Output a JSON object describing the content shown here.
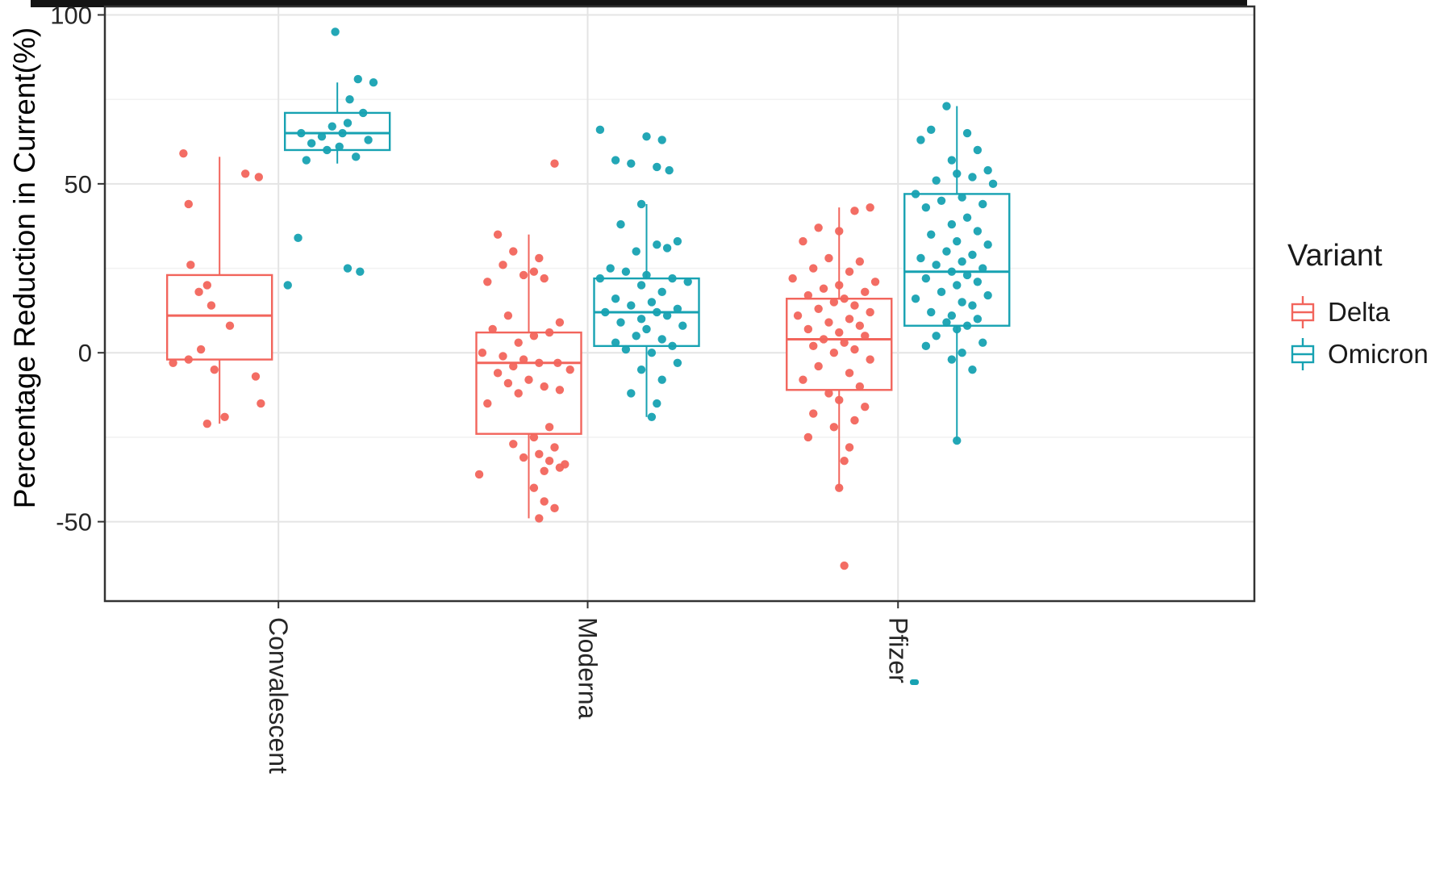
{
  "chart_data": {
    "type": "boxplot",
    "title": "",
    "xlabel": "",
    "ylabel": "Percentage Reduction in Current(%)",
    "ylim": [
      -73.5,
      102.5
    ],
    "yticks": [
      100,
      50,
      0,
      -50
    ],
    "yticks_minor": [
      75,
      25,
      -25
    ],
    "grid": true,
    "categories": [
      "Convalescent",
      "Moderna",
      "Pfizer"
    ],
    "legend": {
      "title": "Variant",
      "position": "right",
      "entries": [
        {
          "label": "Delta",
          "color": "#F2655C"
        },
        {
          "label": "Omicron",
          "color": "#17A2B2"
        }
      ]
    },
    "groups": [
      {
        "category": "Convalescent",
        "variants": [
          {
            "name": "Delta",
            "box": {
              "whisker_low": -21,
              "q1": -2,
              "median": 11,
              "q3": 23,
              "whisker_high": 58
            },
            "points": [
              [
                -0.35,
                59
              ],
              [
                -0.3,
                44
              ],
              [
                0.25,
                53
              ],
              [
                0.38,
                52
              ],
              [
                -0.28,
                26
              ],
              [
                -0.12,
                20
              ],
              [
                -0.2,
                18
              ],
              [
                -0.08,
                14
              ],
              [
                0.1,
                8
              ],
              [
                -0.18,
                1
              ],
              [
                -0.3,
                -2
              ],
              [
                -0.45,
                -3
              ],
              [
                -0.05,
                -5
              ],
              [
                0.35,
                -7
              ],
              [
                0.4,
                -15
              ],
              [
                0.05,
                -19
              ],
              [
                -0.12,
                -21
              ]
            ]
          },
          {
            "name": "Omicron",
            "box": {
              "whisker_low": 56,
              "q1": 60,
              "median": 65,
              "q3": 71,
              "whisker_high": 80
            },
            "points": [
              [
                -0.02,
                95
              ],
              [
                0.2,
                81
              ],
              [
                0.35,
                80
              ],
              [
                0.12,
                75
              ],
              [
                0.25,
                71
              ],
              [
                0.1,
                68
              ],
              [
                -0.05,
                67
              ],
              [
                -0.35,
                65
              ],
              [
                0.05,
                65
              ],
              [
                -0.15,
                64
              ],
              [
                0.3,
                63
              ],
              [
                -0.25,
                62
              ],
              [
                0.02,
                61
              ],
              [
                -0.1,
                60
              ],
              [
                0.18,
                58
              ],
              [
                -0.3,
                57
              ],
              [
                -0.38,
                34
              ],
              [
                0.1,
                25
              ],
              [
                0.22,
                24
              ],
              [
                -0.48,
                20
              ]
            ]
          }
        ]
      },
      {
        "category": "Moderna",
        "variants": [
          {
            "name": "Delta",
            "box": {
              "whisker_low": -49,
              "q1": -24,
              "median": -3,
              "q3": 6,
              "whisker_high": 35
            },
            "points": [
              [
                0.25,
                56
              ],
              [
                -0.3,
                35
              ],
              [
                -0.15,
                30
              ],
              [
                0.1,
                28
              ],
              [
                -0.25,
                26
              ],
              [
                0.05,
                24
              ],
              [
                -0.05,
                23
              ],
              [
                0.15,
                22
              ],
              [
                -0.4,
                21
              ],
              [
                -0.2,
                11
              ],
              [
                0.3,
                9
              ],
              [
                -0.35,
                7
              ],
              [
                0.2,
                6
              ],
              [
                0.05,
                5
              ],
              [
                -0.1,
                3
              ],
              [
                -0.45,
                0
              ],
              [
                -0.25,
                -1
              ],
              [
                -0.05,
                -2
              ],
              [
                0.1,
                -3
              ],
              [
                0.28,
                -3
              ],
              [
                -0.15,
                -4
              ],
              [
                0.4,
                -5
              ],
              [
                -0.3,
                -6
              ],
              [
                0.0,
                -8
              ],
              [
                -0.2,
                -9
              ],
              [
                0.15,
                -10
              ],
              [
                0.3,
                -11
              ],
              [
                -0.1,
                -12
              ],
              [
                -0.4,
                -15
              ],
              [
                0.2,
                -22
              ],
              [
                0.05,
                -25
              ],
              [
                -0.15,
                -27
              ],
              [
                0.25,
                -28
              ],
              [
                0.1,
                -30
              ],
              [
                -0.05,
                -31
              ],
              [
                0.2,
                -32
              ],
              [
                0.35,
                -33
              ],
              [
                0.3,
                -34
              ],
              [
                0.15,
                -35
              ],
              [
                -0.48,
                -36
              ],
              [
                0.05,
                -40
              ],
              [
                0.15,
                -44
              ],
              [
                0.25,
                -46
              ],
              [
                0.1,
                -49
              ]
            ]
          },
          {
            "name": "Omicron",
            "box": {
              "whisker_low": -19,
              "q1": 2,
              "median": 12,
              "q3": 22,
              "whisker_high": 44
            },
            "points": [
              [
                -0.45,
                66
              ],
              [
                0.0,
                64
              ],
              [
                0.15,
                63
              ],
              [
                -0.3,
                57
              ],
              [
                -0.15,
                56
              ],
              [
                0.1,
                55
              ],
              [
                0.22,
                54
              ],
              [
                -0.05,
                44
              ],
              [
                -0.25,
                38
              ],
              [
                0.3,
                33
              ],
              [
                0.1,
                32
              ],
              [
                0.2,
                31
              ],
              [
                -0.1,
                30
              ],
              [
                -0.35,
                25
              ],
              [
                -0.2,
                24
              ],
              [
                0.0,
                23
              ],
              [
                0.25,
                22
              ],
              [
                -0.45,
                22
              ],
              [
                0.4,
                21
              ],
              [
                -0.05,
                20
              ],
              [
                0.15,
                18
              ],
              [
                -0.3,
                16
              ],
              [
                0.05,
                15
              ],
              [
                -0.15,
                14
              ],
              [
                0.3,
                13
              ],
              [
                -0.4,
                12
              ],
              [
                0.1,
                12
              ],
              [
                0.2,
                11
              ],
              [
                -0.05,
                10
              ],
              [
                -0.25,
                9
              ],
              [
                0.35,
                8
              ],
              [
                0.0,
                7
              ],
              [
                -0.1,
                5
              ],
              [
                0.15,
                4
              ],
              [
                -0.3,
                3
              ],
              [
                0.25,
                2
              ],
              [
                -0.2,
                1
              ],
              [
                0.05,
                0
              ],
              [
                0.3,
                -3
              ],
              [
                -0.05,
                -5
              ],
              [
                0.15,
                -8
              ],
              [
                -0.15,
                -12
              ],
              [
                0.1,
                -15
              ],
              [
                0.05,
                -19
              ]
            ]
          }
        ]
      },
      {
        "category": "Pfizer",
        "variants": [
          {
            "name": "Delta",
            "box": {
              "whisker_low": -40,
              "q1": -11,
              "median": 4,
              "q3": 16,
              "whisker_high": 43
            },
            "points": [
              [
                0.3,
                43
              ],
              [
                0.15,
                42
              ],
              [
                -0.2,
                37
              ],
              [
                0.0,
                36
              ],
              [
                -0.35,
                33
              ],
              [
                -0.1,
                28
              ],
              [
                0.2,
                27
              ],
              [
                -0.25,
                25
              ],
              [
                0.1,
                24
              ],
              [
                -0.45,
                22
              ],
              [
                0.35,
                21
              ],
              [
                0.0,
                20
              ],
              [
                -0.15,
                19
              ],
              [
                0.25,
                18
              ],
              [
                -0.3,
                17
              ],
              [
                0.05,
                16
              ],
              [
                -0.05,
                15
              ],
              [
                0.15,
                14
              ],
              [
                -0.2,
                13
              ],
              [
                0.3,
                12
              ],
              [
                -0.4,
                11
              ],
              [
                0.1,
                10
              ],
              [
                -0.1,
                9
              ],
              [
                0.2,
                8
              ],
              [
                -0.3,
                7
              ],
              [
                0.0,
                6
              ],
              [
                0.25,
                5
              ],
              [
                -0.15,
                4
              ],
              [
                0.05,
                3
              ],
              [
                -0.25,
                2
              ],
              [
                0.15,
                1
              ],
              [
                -0.05,
                0
              ],
              [
                0.3,
                -2
              ],
              [
                -0.2,
                -4
              ],
              [
                0.1,
                -6
              ],
              [
                -0.35,
                -8
              ],
              [
                0.2,
                -10
              ],
              [
                -0.1,
                -12
              ],
              [
                0.0,
                -14
              ],
              [
                0.25,
                -16
              ],
              [
                -0.25,
                -18
              ],
              [
                0.15,
                -20
              ],
              [
                -0.05,
                -22
              ],
              [
                -0.3,
                -25
              ],
              [
                0.1,
                -28
              ],
              [
                0.05,
                -32
              ],
              [
                0.0,
                -40
              ],
              [
                0.05,
                -63
              ]
            ]
          },
          {
            "name": "Omicron",
            "box": {
              "whisker_low": -26,
              "q1": 8,
              "median": 24,
              "q3": 47,
              "whisker_high": 73
            },
            "points": [
              [
                -0.1,
                73
              ],
              [
                -0.25,
                66
              ],
              [
                0.1,
                65
              ],
              [
                -0.35,
                63
              ],
              [
                0.2,
                60
              ],
              [
                -0.05,
                57
              ],
              [
                0.3,
                54
              ],
              [
                0.0,
                53
              ],
              [
                0.15,
                52
              ],
              [
                -0.2,
                51
              ],
              [
                0.35,
                50
              ],
              [
                -0.4,
                47
              ],
              [
                0.05,
                46
              ],
              [
                -0.15,
                45
              ],
              [
                0.25,
                44
              ],
              [
                -0.3,
                43
              ],
              [
                0.1,
                40
              ],
              [
                -0.05,
                38
              ],
              [
                0.2,
                36
              ],
              [
                -0.25,
                35
              ],
              [
                0.0,
                33
              ],
              [
                0.3,
                32
              ],
              [
                -0.1,
                30
              ],
              [
                0.15,
                29
              ],
              [
                -0.35,
                28
              ],
              [
                0.05,
                27
              ],
              [
                -0.2,
                26
              ],
              [
                0.25,
                25
              ],
              [
                -0.05,
                24
              ],
              [
                0.1,
                23
              ],
              [
                -0.3,
                22
              ],
              [
                0.2,
                21
              ],
              [
                0.0,
                20
              ],
              [
                -0.15,
                18
              ],
              [
                0.3,
                17
              ],
              [
                -0.4,
                16
              ],
              [
                0.05,
                15
              ],
              [
                0.15,
                14
              ],
              [
                -0.25,
                12
              ],
              [
                -0.05,
                11
              ],
              [
                0.2,
                10
              ],
              [
                -0.1,
                9
              ],
              [
                0.1,
                8
              ],
              [
                0.0,
                7
              ],
              [
                -0.2,
                5
              ],
              [
                0.25,
                3
              ],
              [
                -0.3,
                2
              ],
              [
                0.05,
                0
              ],
              [
                -0.05,
                -2
              ],
              [
                0.15,
                -5
              ],
              [
                0.0,
                -26
              ]
            ]
          }
        ]
      }
    ]
  }
}
